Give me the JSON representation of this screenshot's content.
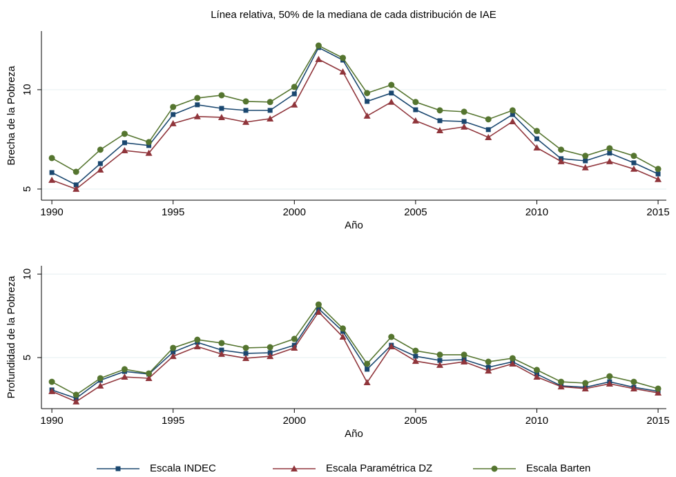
{
  "chart_data": [
    {
      "type": "line",
      "title": "Línea relativa, 50% de la mediana de cada distribución de IAE",
      "xlabel": "Año",
      "ylabel": "Brecha de la Pobreza",
      "x": [
        1990,
        1991,
        1992,
        1993,
        1994,
        1995,
        1996,
        1997,
        1998,
        1999,
        2000,
        2001,
        2002,
        2003,
        2004,
        2005,
        2006,
        2007,
        2008,
        2009,
        2010,
        2011,
        2012,
        2013,
        2014,
        2015
      ],
      "xlim": [
        1989.57,
        2015.34
      ],
      "xticks": [
        1990,
        1995,
        2000,
        2005,
        2010,
        2015
      ],
      "ylim": [
        4.44,
        12.95
      ],
      "yticks": [
        5,
        10
      ],
      "grid": true,
      "series": [
        {
          "name": "Escala INDEC",
          "color": "#1a476f",
          "marker": "square",
          "values": [
            5.83,
            5.21,
            6.28,
            7.33,
            7.19,
            8.75,
            9.24,
            9.06,
            8.96,
            8.96,
            9.79,
            12.12,
            11.49,
            9.41,
            9.83,
            8.99,
            8.44,
            8.4,
            7.99,
            8.75,
            7.53,
            6.53,
            6.42,
            6.81,
            6.32,
            5.76
          ]
        },
        {
          "name": "Escala Paramétrica DZ",
          "color": "#90353b",
          "marker": "triangle",
          "values": [
            5.45,
            5.0,
            5.97,
            6.94,
            6.81,
            8.3,
            8.65,
            8.61,
            8.37,
            8.54,
            9.24,
            11.53,
            10.9,
            8.68,
            9.38,
            8.44,
            7.95,
            8.13,
            7.6,
            8.4,
            7.08,
            6.39,
            6.08,
            6.39,
            6.01,
            5.49
          ]
        },
        {
          "name": "Escala Barten",
          "color": "#55752f",
          "marker": "circle",
          "values": [
            6.56,
            5.87,
            6.98,
            7.78,
            7.36,
            9.13,
            9.58,
            9.72,
            9.41,
            9.38,
            10.14,
            12.22,
            11.6,
            9.83,
            10.24,
            9.38,
            8.96,
            8.89,
            8.51,
            8.96,
            7.92,
            6.98,
            6.67,
            7.05,
            6.67,
            6.01
          ]
        }
      ]
    },
    {
      "type": "line",
      "xlabel": "Año",
      "ylabel": "Profundidad de la Pobreza",
      "x": [
        1990,
        1991,
        1992,
        1993,
        1994,
        1995,
        1996,
        1997,
        1998,
        1999,
        2000,
        2001,
        2002,
        2003,
        2004,
        2005,
        2006,
        2007,
        2008,
        2009,
        2010,
        2011,
        2012,
        2013,
        2014,
        2015
      ],
      "xlim": [
        1989.57,
        2015.34
      ],
      "xticks": [
        1990,
        1995,
        2000,
        2005,
        2010,
        2015
      ],
      "ylim": [
        1.94,
        10.5
      ],
      "yticks": [
        5,
        10
      ],
      "grid": true,
      "series": [
        {
          "color": "#1a476f",
          "marker": "square",
          "values": [
            3.06,
            2.56,
            3.64,
            4.17,
            4.01,
            5.33,
            5.91,
            5.45,
            5.25,
            5.29,
            5.74,
            7.93,
            6.57,
            4.3,
            5.74,
            5.08,
            4.83,
            4.88,
            4.42,
            4.75,
            4.01,
            3.31,
            3.22,
            3.55,
            3.22,
            2.98
          ]
        },
        {
          "color": "#90353b",
          "marker": "triangle",
          "values": [
            2.98,
            2.36,
            3.31,
            3.84,
            3.76,
            5.08,
            5.66,
            5.21,
            4.96,
            5.08,
            5.58,
            7.73,
            6.24,
            3.51,
            5.66,
            4.79,
            4.55,
            4.75,
            4.21,
            4.63,
            3.84,
            3.26,
            3.14,
            3.43,
            3.14,
            2.89
          ]
        },
        {
          "color": "#55752f",
          "marker": "circle",
          "values": [
            3.55,
            2.77,
            3.76,
            4.3,
            4.05,
            5.58,
            6.07,
            5.87,
            5.58,
            5.62,
            6.12,
            8.18,
            6.74,
            4.63,
            6.24,
            5.41,
            5.17,
            5.17,
            4.75,
            4.96,
            4.26,
            3.55,
            3.47,
            3.88,
            3.55,
            3.14
          ]
        }
      ]
    }
  ]
}
